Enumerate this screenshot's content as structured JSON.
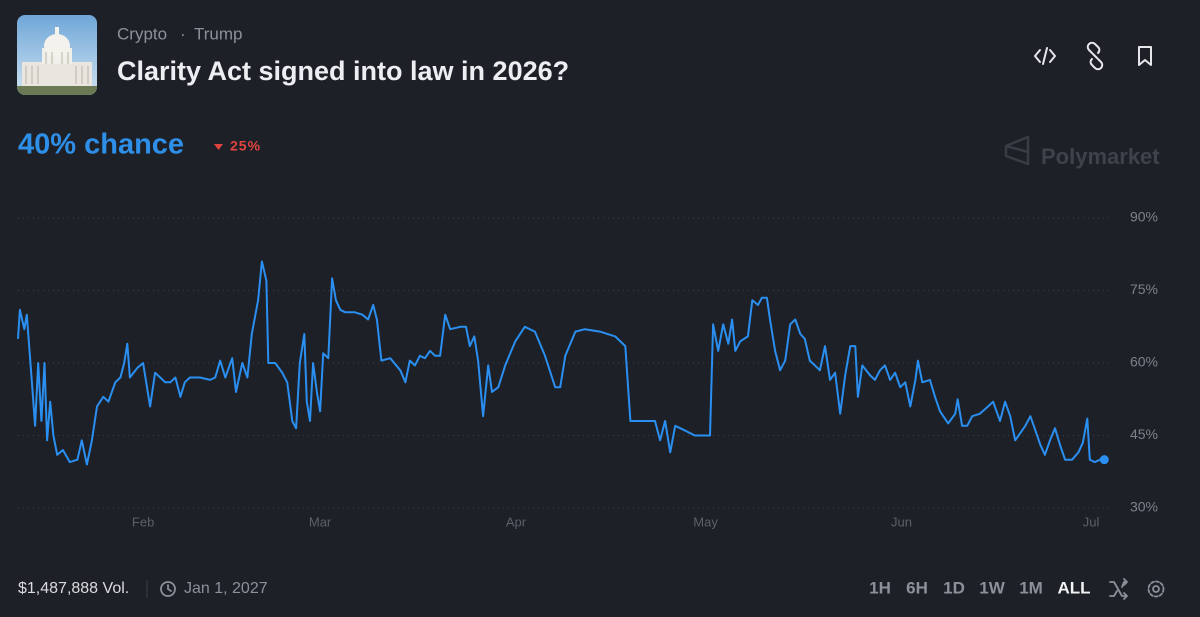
{
  "header": {
    "breadcrumb": [
      "Crypto",
      "Trump"
    ],
    "title": "Clarity Act signed into law in 2026?",
    "chance": "40% chance",
    "change": "25%",
    "watermark": "Polymarket"
  },
  "chart_data": {
    "type": "line",
    "color": "#2a8ff0",
    "grid": true,
    "x": [
      11.2,
      11.5,
      12.2,
      12.6,
      13.4,
      13.9,
      14.4,
      14.9,
      15.4,
      15.8,
      16.3,
      16.8,
      17.4,
      18.3,
      19.4,
      20.6,
      21.3,
      22.1,
      22.9,
      23.7,
      24.7,
      25.5,
      26.6,
      27.4,
      28,
      28.5,
      28.9,
      30.1,
      31,
      32.1,
      32.9,
      33.7,
      34.5,
      35.3,
      36.1,
      36.9,
      37.6,
      38.4,
      40,
      41.6,
      42.4,
      43.2,
      44,
      45.1,
      45.7,
      46.7,
      47.5,
      48.2,
      49.2,
      49.8,
      50.5,
      50.8,
      51.9,
      53,
      53.8,
      54.6,
      55.2,
      55.8,
      56.5,
      56.9,
      57.4,
      57.9,
      58.5,
      59,
      59.5,
      60.3,
      60.9,
      61.5,
      62.2,
      63,
      64.5,
      65.7,
      66.6,
      67.4,
      68,
      68.7,
      70.1,
      71.7,
      72.5,
      73.2,
      74,
      74.8,
      75.6,
      76.4,
      77.2,
      78,
      78.8,
      79.6,
      81.2,
      82.1,
      82.7,
      83.4,
      84,
      84.8,
      85.6,
      86.2,
      87.2,
      88.3,
      89.9,
      91.4,
      93,
      94.6,
      96.2,
      97,
      97.8,
      99.4,
      100.9,
      103.3,
      105.7,
      107.3,
      108.1,
      109.6,
      112,
      112.8,
      113.6,
      114.4,
      115.2,
      116.8,
      118.3,
      120.7,
      121.2,
      122,
      122.8,
      123.6,
      124.2,
      124.7,
      125.5,
      126.7,
      127.4,
      128.3,
      128.9,
      129.7,
      130.2,
      131,
      131.8,
      132.6,
      133.4,
      134.2,
      135,
      135.7,
      136.5,
      137.3,
      138.1,
      138.9,
      139.7,
      140.5,
      141.3,
      142.1,
      142.9,
      143.7,
      144.1,
      144.8,
      146,
      146.8,
      147.6,
      148.4,
      149.2,
      150,
      150.8,
      151.6,
      152.4,
      153.2,
      153.6,
      154.3,
      155.5,
      156.3,
      157.1,
      158.4,
      159.5,
      159.9,
      160.6,
      161.4,
      162.2,
      163.4,
      164.7,
      165.5,
      166.6,
      167.4,
      168.2,
      169,
      169.8,
      170.6,
      171.4,
      173,
      173.7,
      174.5,
      175.3,
      176.1,
      176.9,
      178,
      179,
      179.7,
      180.4,
      180.8,
      181.6,
      182.4,
      183.1
    ],
    "values": [
      65,
      71,
      67,
      70,
      56,
      47,
      60,
      48,
      60,
      44,
      52,
      45,
      41,
      42,
      39.5,
      40,
      44,
      39,
      44,
      51,
      53,
      52,
      56,
      57,
      60,
      64,
      57,
      59,
      60,
      51,
      58,
      57,
      56,
      56,
      57,
      53,
      56,
      57,
      57,
      56.5,
      57,
      60.5,
      57,
      61,
      54,
      60,
      57,
      66,
      73,
      81,
      77,
      60,
      60,
      58,
      56,
      48,
      46.5,
      60,
      66,
      52,
      48,
      60,
      54,
      50,
      62,
      61,
      77.5,
      73,
      71,
      70.5,
      70.5,
      70,
      69,
      72,
      69,
      60.5,
      61,
      58.5,
      56,
      60.5,
      59.5,
      61.5,
      61,
      62.5,
      61.5,
      61.5,
      70,
      67,
      67.5,
      67.5,
      63.5,
      65.5,
      60.5,
      49,
      59.5,
      54,
      55,
      59.5,
      64.5,
      67.5,
      66.5,
      61.5,
      55,
      55,
      61.5,
      66.5,
      67,
      66.5,
      65.5,
      63.5,
      48,
      48,
      48,
      44,
      48,
      41.5,
      47,
      46,
      45,
      45,
      68,
      62.5,
      68,
      64,
      69,
      62.5,
      64.5,
      65.5,
      73,
      72,
      73.5,
      73.5,
      69,
      62.5,
      58.5,
      60.5,
      68,
      69,
      66,
      65,
      60.5,
      59.5,
      58.5,
      63.5,
      56.5,
      58,
      49.5,
      57.5,
      63.5,
      63.5,
      53,
      59.5,
      57.5,
      56.5,
      58.5,
      59.5,
      56.5,
      58,
      55,
      56,
      51,
      56.5,
      60.5,
      56,
      56.5,
      53,
      50,
      47.5,
      49.5,
      52.5,
      47,
      47,
      49,
      49.5,
      51,
      52,
      48,
      52,
      49,
      44,
      45.5,
      47,
      49,
      43,
      41,
      44,
      46.5,
      43,
      40,
      40,
      41.5,
      43.5,
      48.5,
      40,
      39.5,
      40,
      40
    ],
    "xlim": [
      11.2,
      184
    ],
    "ylim": [
      30,
      90
    ],
    "xticks": [
      {
        "value": 31,
        "label": "Feb"
      },
      {
        "value": 59,
        "label": "Mar"
      },
      {
        "value": 90,
        "label": "Apr"
      },
      {
        "value": 120,
        "label": "May"
      },
      {
        "value": 151,
        "label": "Jun"
      },
      {
        "value": 181,
        "label": "Jul"
      }
    ],
    "yticks": [
      {
        "value": 90,
        "label": "90%"
      },
      {
        "value": 75,
        "label": "75%"
      },
      {
        "value": 60,
        "label": "60%"
      },
      {
        "value": 45,
        "label": "45%"
      },
      {
        "value": 30,
        "label": "30%"
      }
    ]
  },
  "footer": {
    "volume": "$1,487,888 Vol.",
    "end_date": "Jan 1, 2027",
    "ranges": [
      "1H",
      "6H",
      "1D",
      "1W",
      "1M",
      "ALL"
    ]
  }
}
